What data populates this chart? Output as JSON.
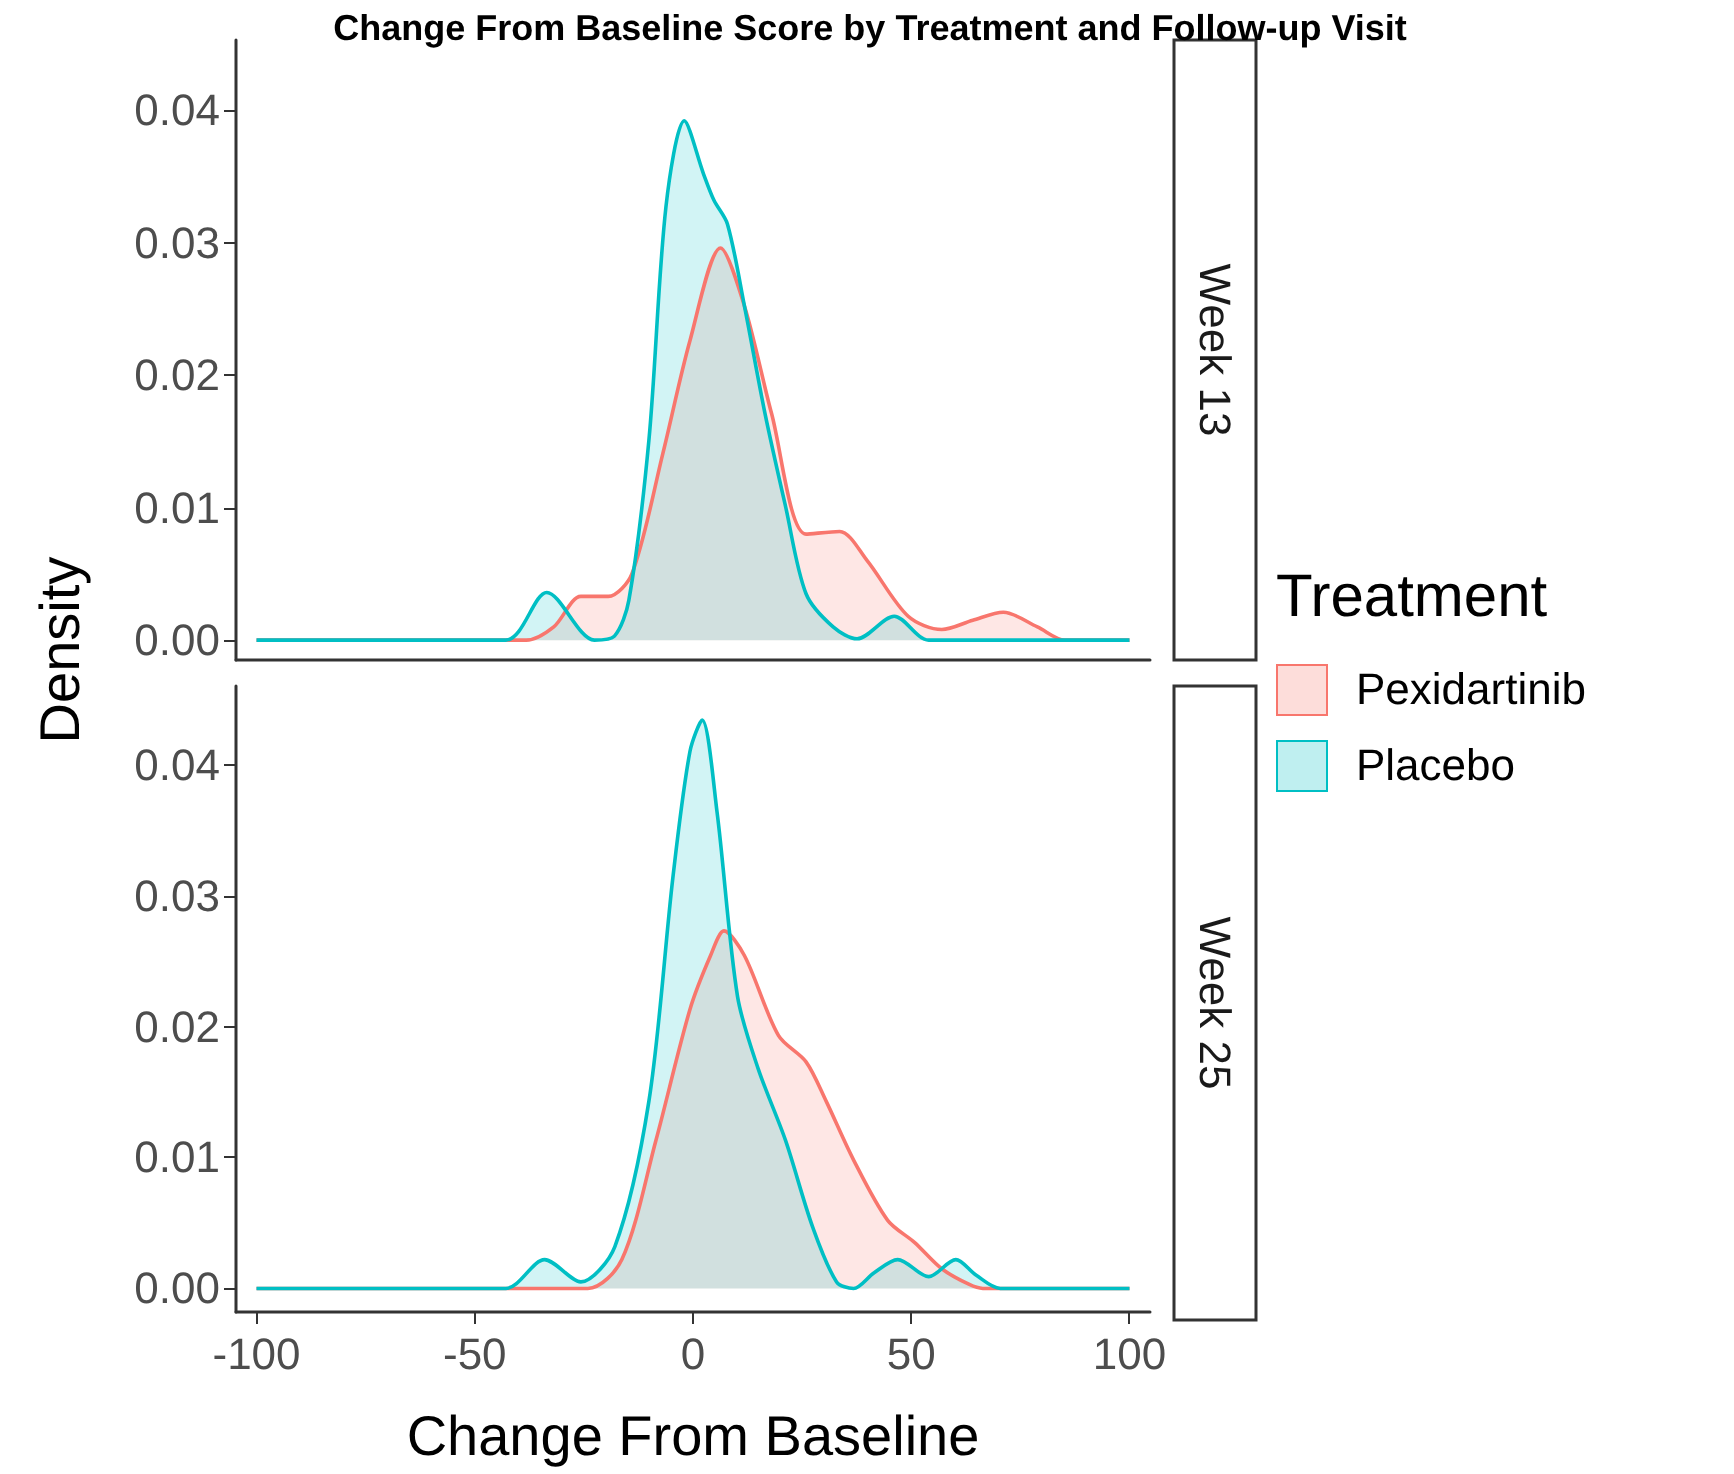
{
  "chart_data": [
    {
      "type": "area",
      "title": "Change From Baseline Score by Treatment and Follow-up Visit",
      "annotations": [
        "Week 13"
      ],
      "ylabel": "Density",
      "legend": "right",
      "legend_title": "Treatment",
      "tick_labels": "y",
      "marker": "none",
      "xlim": [
        -104.7,
        104.7
      ],
      "xticks": [
        -100,
        -50,
        0,
        50,
        100
      ],
      "ylim": [
        -0.0015,
        0.0453
      ],
      "yticks": [
        {
          "value": 0,
          "label": "0.00"
        },
        {
          "value": 0.01,
          "label": "0.01"
        },
        {
          "value": 0.02,
          "label": "0.02"
        },
        {
          "value": 0.03,
          "label": "0.03"
        },
        {
          "value": 0.04,
          "label": "0.04"
        }
      ],
      "series": [
        {
          "name": "Pexidartinib",
          "color": "#f8766d",
          "x": [
            -100,
            -38.2,
            -31.9,
            -25.7,
            -19.4,
            -14,
            -6.9,
            -0.7,
            6.3,
            11.8,
            18,
            25.9,
            33.6,
            39.9,
            49.3,
            57,
            64.1,
            71.1,
            78.9,
            85.2,
            100
          ],
          "values": [
            0,
            0,
            0.001,
            0.0033,
            0.0033,
            0.005,
            0.0141,
            0.0226,
            0.0296,
            0.0252,
            0.0171,
            0.008,
            0.0082,
            0.006,
            0.0018,
            0.0008,
            0.0015,
            0.0021,
            0.001,
            0,
            0
          ]
        },
        {
          "name": "Placebo",
          "color": "#00bfc4",
          "x": [
            -100,
            -42.9,
            -33.5,
            -22.6,
            -18,
            -14.7,
            -10.1,
            -6.2,
            -2,
            2.4,
            4.8,
            7.9,
            11.8,
            16.5,
            21.2,
            25.9,
            32.1,
            37.6,
            46.1,
            54,
            100
          ],
          "values": [
            0,
            0,
            0.0036,
            0,
            0.0003,
            0.003,
            0.0151,
            0.0327,
            0.0392,
            0.0352,
            0.0332,
            0.0314,
            0.0252,
            0.0171,
            0.0101,
            0.0035,
            0.001,
            0.0001,
            0.0018,
            0,
            0
          ]
        }
      ]
    },
    {
      "type": "area",
      "annotations": [
        "Week 25"
      ],
      "xlabel": "Change From Baseline",
      "marker": "none",
      "xlim": [
        -104.7,
        104.7
      ],
      "xticks": [
        -100,
        -50,
        0,
        50,
        100
      ],
      "ylim": [
        -0.0018,
        0.046
      ],
      "yticks": [
        {
          "value": 0,
          "label": "0.00"
        },
        {
          "value": 0.01,
          "label": "0.01"
        },
        {
          "value": 0.02,
          "label": "0.02"
        },
        {
          "value": 0.03,
          "label": "0.03"
        },
        {
          "value": 0.04,
          "label": "0.04"
        }
      ],
      "series": [
        {
          "name": "Pexidartinib",
          "color": "#f8766d",
          "x": [
            -100,
            -24.1,
            -16.3,
            -8.5,
            -0.7,
            4,
            7.1,
            11.8,
            19.6,
            25.9,
            30.5,
            36.8,
            44.6,
            50.8,
            57,
            63.3,
            66.4,
            100
          ],
          "values": [
            0,
            0,
            0.0022,
            0.0113,
            0.0213,
            0.0254,
            0.0273,
            0.0254,
            0.0193,
            0.0173,
            0.0143,
            0.0098,
            0.0052,
            0.0035,
            0.0015,
            0.0003,
            0,
            0
          ]
        },
        {
          "name": "Placebo",
          "color": "#00bfc4",
          "x": [
            -100,
            -42.9,
            -34,
            -25.7,
            -17.9,
            -10.1,
            -4.6,
            -0.7,
            2.1,
            5.5,
            10.2,
            14.9,
            21.2,
            27.4,
            32.9,
            36.8,
            41.5,
            46.9,
            54,
            60.2,
            64.9,
            70.4,
            100
          ],
          "values": [
            0,
            0,
            0.0022,
            0.0005,
            0.0032,
            0.0143,
            0.0314,
            0.041,
            0.0434,
            0.0364,
            0.0223,
            0.0168,
            0.0113,
            0.0047,
            0.0005,
            0,
            0.0012,
            0.0022,
            0.0009,
            0.0022,
            0.001,
            0,
            0
          ]
        }
      ]
    }
  ]
}
